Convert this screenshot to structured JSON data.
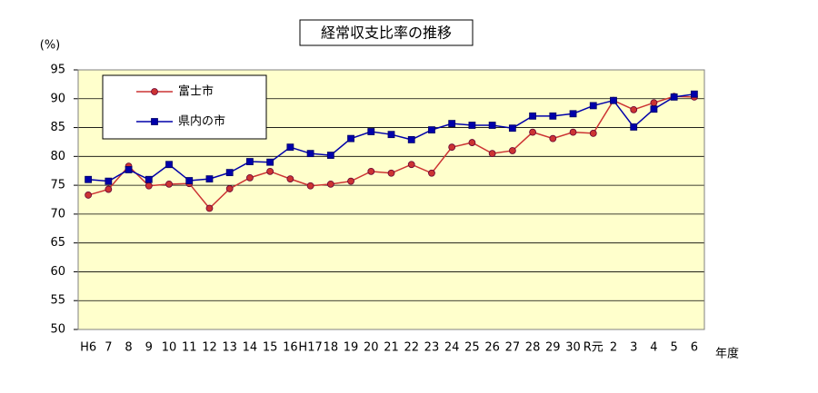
{
  "chart_data": {
    "type": "line",
    "title": "経常収支比率の推移",
    "y_unit": "(%)",
    "x_label": "年度",
    "categories": [
      "H6",
      "7",
      "8",
      "9",
      "10",
      "11",
      "12",
      "13",
      "14",
      "15",
      "16",
      "H17",
      "18",
      "19",
      "20",
      "21",
      "22",
      "23",
      "24",
      "25",
      "26",
      "27",
      "28",
      "29",
      "30",
      "R元",
      "2",
      "3",
      "4",
      "5",
      "6"
    ],
    "series": [
      {
        "name": "富士市",
        "color": "#cc3333",
        "marker": "circle",
        "values": [
          73.3,
          74.3,
          78.3,
          74.9,
          75.2,
          75.3,
          71.0,
          74.4,
          76.3,
          77.4,
          76.1,
          74.9,
          75.2,
          75.7,
          77.4,
          77.1,
          78.6,
          77.1,
          81.6,
          82.4,
          80.5,
          81.0,
          84.2,
          83.1,
          84.2,
          84.0,
          89.7,
          88.1,
          89.3,
          90.4,
          90.3
        ]
      },
      {
        "name": "県内の市",
        "color": "#0000aa",
        "marker": "square",
        "values": [
          76.0,
          75.7,
          77.7,
          76.0,
          78.6,
          75.8,
          76.1,
          77.2,
          79.1,
          79.0,
          81.6,
          80.5,
          80.2,
          83.1,
          84.3,
          83.8,
          82.9,
          84.6,
          85.7,
          85.4,
          85.4,
          84.9,
          87.0,
          87.0,
          87.4,
          88.8,
          89.7,
          85.1,
          88.2,
          90.3,
          90.8
        ]
      }
    ],
    "ylim": [
      50,
      95
    ],
    "yticks": [
      50,
      55,
      60,
      65,
      70,
      75,
      80,
      85,
      90,
      95
    ],
    "grid": true,
    "legend": "upper-left",
    "plot_background": "#ffffcc"
  }
}
